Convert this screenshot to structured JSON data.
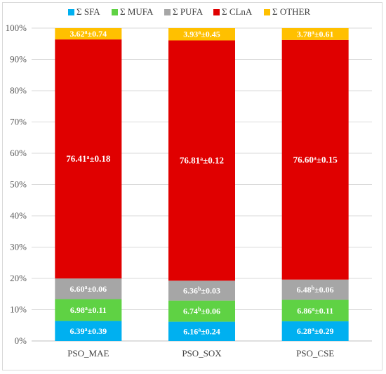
{
  "chart_data": {
    "type": "bar",
    "stacked": true,
    "percent": true,
    "categories": [
      "PSO_MAE",
      "PSO_SOX",
      "PSO_CSE"
    ],
    "series": [
      {
        "name": "Σ SFA",
        "color": "#00b0f0",
        "values": [
          6.39,
          6.16,
          6.28
        ],
        "labels": [
          {
            "v": "6.39",
            "s": "a",
            "e": "±0.39"
          },
          {
            "v": "6.16",
            "s": "a",
            "e": "±0.24"
          },
          {
            "v": "6.28",
            "s": "a",
            "e": "±0.29"
          }
        ]
      },
      {
        "name": "Σ MUFA",
        "color": "#5fd244",
        "values": [
          6.98,
          6.74,
          6.86
        ],
        "labels": [
          {
            "v": "6.98",
            "s": "a",
            "e": "±0.11"
          },
          {
            "v": "6.74",
            "s": "b",
            "e": "±0.06"
          },
          {
            "v": "6.86",
            "s": "a",
            "e": "±0.11"
          }
        ]
      },
      {
        "name": "Σ PUFA",
        "color": "#a6a6a6",
        "values": [
          6.6,
          6.36,
          6.48
        ],
        "labels": [
          {
            "v": "6.60",
            "s": "a",
            "e": "±0.06"
          },
          {
            "v": "6.36",
            "s": "b",
            "e": "±0.03"
          },
          {
            "v": "6.48",
            "s": "b",
            "e": "±0.06"
          }
        ]
      },
      {
        "name": "Σ CLnA",
        "color": "#e00000",
        "values": [
          76.41,
          76.81,
          76.6
        ],
        "labels": [
          {
            "v": "76.41",
            "s": "a",
            "e": "±0.18"
          },
          {
            "v": "76.81",
            "s": "a",
            "e": "±0.12"
          },
          {
            "v": "76.60",
            "s": "a",
            "e": "±0.15"
          }
        ]
      },
      {
        "name": "Σ OTHER",
        "color": "#ffc000",
        "values": [
          3.62,
          3.93,
          3.78
        ],
        "labels": [
          {
            "v": "3.62",
            "s": "a",
            "e": "±0.74"
          },
          {
            "v": "3.93",
            "s": "a",
            "e": "±0.45"
          },
          {
            "v": "3.78",
            "s": "a",
            "e": "±0.61"
          }
        ]
      }
    ],
    "yticks": [
      "0%",
      "10%",
      "20%",
      "30%",
      "40%",
      "50%",
      "60%",
      "70%",
      "80%",
      "90%",
      "100%"
    ],
    "ylim": [
      0,
      100
    ],
    "grid": true,
    "legend": "top"
  }
}
